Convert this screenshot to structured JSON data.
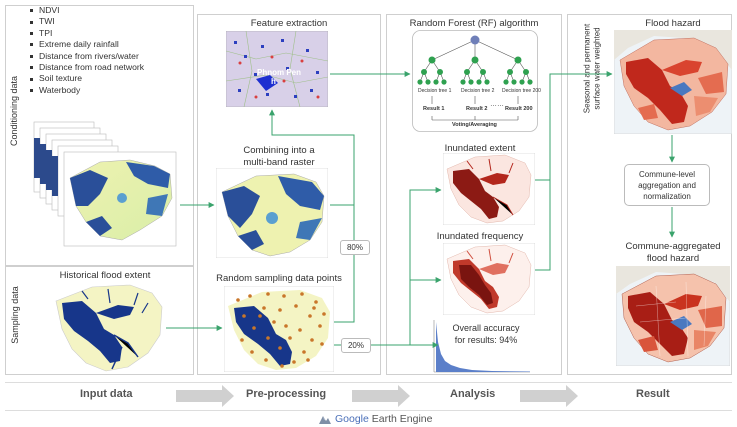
{
  "sections": {
    "conditioning": {
      "label": "Conditioning data",
      "items": [
        "NDVI",
        "TWI",
        "TPI",
        "Extreme daily rainfall",
        "Distance from rivers/water",
        "Distance from road network",
        "Soil texture",
        "Waterbody"
      ]
    },
    "sampling": {
      "label": "Sampling data",
      "historical": "Historical flood extent"
    },
    "preprocessing": {
      "feature": "Feature extraction",
      "combine1": "Combining into a",
      "combine2": "multi-band raster",
      "sampling": "Random sampling data points",
      "city1": "Phnom Pen",
      "city2": "h"
    },
    "analysis": {
      "title": "Random Forest (RF) algorithm",
      "trees": [
        "Decision tree 1",
        "Decision tree 2",
        "Decision tree 200"
      ],
      "results": [
        "Result 1",
        "Result 2",
        "Result 200"
      ],
      "dots": "……",
      "voting": "Voting/Averaging",
      "inundated_extent": "Inundated extent",
      "inundated_freq": "Inundated frequency",
      "accuracy1": "Overall accuracy",
      "accuracy2": "for results: 94%"
    },
    "result": {
      "flood_hazard": "Flood hazard",
      "seasonal1": "Seasonal and permanent",
      "seasonal2": "surface water weighted",
      "commune1": "Commune-level",
      "commune2": "aggregation and",
      "commune3": "normalization",
      "agg1": "Commune-aggregated",
      "agg2": "flood hazard"
    },
    "percents": {
      "p80": "80%",
      "p20": "20%"
    }
  },
  "steps": [
    "Input data",
    "Pre-processing",
    "Analysis",
    "Result"
  ],
  "footer": {
    "google": "Google",
    "earth": " Earth Engine"
  },
  "colors": {
    "arrow": "#3aa36c",
    "flow": "#cfcfcf"
  }
}
